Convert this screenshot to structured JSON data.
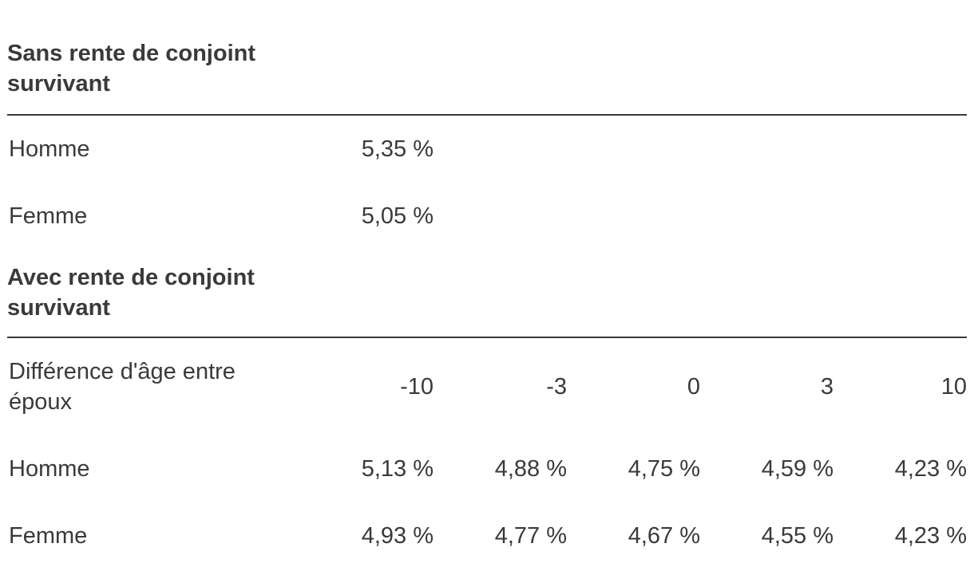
{
  "page": {
    "language": "fr",
    "text_color": "#3a3a3a",
    "rule_color": "#3a3a3a",
    "background_color": "#ffffff"
  },
  "table": {
    "sections": [
      {
        "header": "Sans rente de conjoint survivant",
        "rows": [
          {
            "label": "Homme",
            "values": [
              "5,35 %",
              "",
              "",
              "",
              ""
            ]
          },
          {
            "label": "Femme",
            "values": [
              "5,05 %",
              "",
              "",
              "",
              ""
            ]
          }
        ]
      },
      {
        "header": "Avec rente de conjoint survivant",
        "col_header": {
          "label": "Différence d'âge entre époux",
          "values": [
            "-10",
            "-3",
            "0",
            "3",
            "10"
          ]
        },
        "rows": [
          {
            "label": "Homme",
            "values": [
              "5,13 %",
              "4,88 %",
              "4,75 %",
              "4,59 %",
              "4,23 %"
            ]
          },
          {
            "label": "Femme",
            "values": [
              "4,93 %",
              "4,77 %",
              "4,67 %",
              "4,55 %",
              "4,23 %"
            ]
          }
        ]
      }
    ]
  },
  "chart_data": {
    "type": "table",
    "title": "",
    "sections": [
      {
        "section": "Sans rente de conjoint survivant",
        "columns": [
          ""
        ],
        "rows": [
          {
            "label": "Homme",
            "values_pct": [
              5.35
            ]
          },
          {
            "label": "Femme",
            "values_pct": [
              5.05
            ]
          }
        ]
      },
      {
        "section": "Avec rente de conjoint survivant",
        "columns_label": "Différence d'âge entre époux",
        "columns": [
          -10,
          -3,
          0,
          3,
          10
        ],
        "rows": [
          {
            "label": "Homme",
            "values_pct": [
              5.13,
              4.88,
              4.75,
              4.59,
              4.23
            ]
          },
          {
            "label": "Femme",
            "values_pct": [
              4.93,
              4.77,
              4.67,
              4.55,
              4.23
            ]
          }
        ]
      }
    ]
  }
}
